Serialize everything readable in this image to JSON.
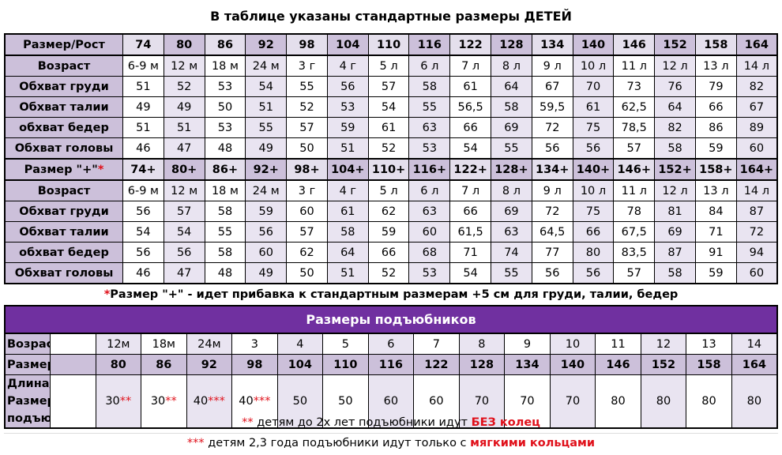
{
  "title": "В таблице указаны стандартные размеры ДЕТЕЙ",
  "standard": {
    "header": {
      "label": "Размер/Рост",
      "values": [
        "74",
        "80",
        "86",
        "92",
        "98",
        "104",
        "110",
        "116",
        "122",
        "128",
        "134",
        "140",
        "146",
        "152",
        "158",
        "164"
      ]
    },
    "rows": [
      {
        "label": "Возраст",
        "values": [
          "6-9 м",
          "12 м",
          "18 м",
          "24 м",
          "3 г",
          "4 г",
          "5 л",
          "6 л",
          "7 л",
          "8 л",
          "9 л",
          "10 л",
          "11 л",
          "12 л",
          "13 л",
          "14 л"
        ]
      },
      {
        "label": "Обхват груди",
        "values": [
          "51",
          "52",
          "53",
          "54",
          "55",
          "56",
          "57",
          "58",
          "61",
          "64",
          "67",
          "70",
          "73",
          "76",
          "79",
          "82"
        ]
      },
      {
        "label": "Обхват талии",
        "values": [
          "49",
          "49",
          "50",
          "51",
          "52",
          "53",
          "54",
          "55",
          "56,5",
          "58",
          "59,5",
          "61",
          "62,5",
          "64",
          "66",
          "67"
        ]
      },
      {
        "label": "обхват бедер",
        "values": [
          "51",
          "51",
          "53",
          "55",
          "57",
          "59",
          "61",
          "63",
          "66",
          "69",
          "72",
          "75",
          "78,5",
          "82",
          "86",
          "89"
        ]
      },
      {
        "label": "Обхват головы",
        "values": [
          "46",
          "47",
          "48",
          "49",
          "50",
          "51",
          "52",
          "53",
          "54",
          "55",
          "56",
          "56",
          "57",
          "58",
          "59",
          "60"
        ]
      }
    ]
  },
  "plus": {
    "header": {
      "label": "Размер \"+\"",
      "asterisk": "*",
      "values": [
        "74+",
        "80+",
        "86+",
        "92+",
        "98+",
        "104+",
        "110+",
        "116+",
        "122+",
        "128+",
        "134+",
        "140+",
        "146+",
        "152+",
        "158+",
        "164+"
      ]
    },
    "rows": [
      {
        "label": "Возраст",
        "values": [
          "6-9 м",
          "12 м",
          "18 м",
          "24 м",
          "3 г",
          "4 г",
          "5 л",
          "6 л",
          "7 л",
          "8 л",
          "9 л",
          "10 л",
          "11 л",
          "12 л",
          "13 л",
          "14 л"
        ]
      },
      {
        "label": "Обхват груди",
        "values": [
          "56",
          "57",
          "58",
          "59",
          "60",
          "61",
          "62",
          "63",
          "66",
          "69",
          "72",
          "75",
          "78",
          "81",
          "84",
          "87"
        ]
      },
      {
        "label": "Обхват талии",
        "values": [
          "54",
          "54",
          "55",
          "56",
          "57",
          "58",
          "59",
          "60",
          "61,5",
          "63",
          "64,5",
          "66",
          "67,5",
          "69",
          "71",
          "72"
        ]
      },
      {
        "label": "обхват бедер",
        "values": [
          "56",
          "56",
          "58",
          "60",
          "62",
          "64",
          "66",
          "68",
          "71",
          "74",
          "77",
          "80",
          "83,5",
          "87",
          "91",
          "94"
        ]
      },
      {
        "label": "Обхват головы",
        "values": [
          "46",
          "47",
          "48",
          "49",
          "50",
          "51",
          "52",
          "53",
          "54",
          "55",
          "56",
          "56",
          "57",
          "58",
          "59",
          "60"
        ]
      }
    ]
  },
  "plus_note": {
    "asterisk": "*",
    "text": "Размер \"+\" - идет прибавка к стандартным размерам +5 см для груди, талии, бедер"
  },
  "skirts": {
    "title": "Размеры подъюбников",
    "age": {
      "label": "Возраст",
      "values": [
        "",
        "12м",
        "18м",
        "24м",
        "3",
        "4",
        "5",
        "6",
        "7",
        "8",
        "9",
        "10",
        "11",
        "12",
        "13",
        "14"
      ]
    },
    "size": {
      "label": "Размер=Рост",
      "values": [
        "",
        "80",
        "86",
        "92",
        "98",
        "104",
        "110",
        "116",
        "122",
        "128",
        "134",
        "140",
        "146",
        "152",
        "158",
        "164"
      ]
    },
    "length": {
      "label": "Длина/Размер подъюбника(см)",
      "values": [
        {
          "v": "",
          "m": ""
        },
        {
          "v": "30",
          "m": "**"
        },
        {
          "v": "30",
          "m": "**"
        },
        {
          "v": "40",
          "m": "***"
        },
        {
          "v": "40",
          "m": "***"
        },
        {
          "v": "50",
          "m": ""
        },
        {
          "v": "50",
          "m": ""
        },
        {
          "v": "60",
          "m": ""
        },
        {
          "v": "60",
          "m": ""
        },
        {
          "v": "70",
          "m": ""
        },
        {
          "v": "70",
          "m": ""
        },
        {
          "v": "70",
          "m": ""
        },
        {
          "v": "80",
          "m": ""
        },
        {
          "v": "80",
          "m": ""
        },
        {
          "v": "80",
          "m": ""
        },
        {
          "v": "80",
          "m": ""
        }
      ]
    }
  },
  "notes": [
    {
      "mark": "**",
      "text": "детям до 2х лет подъюбники идут ",
      "emph": "БЕЗ колец"
    },
    {
      "mark": "***",
      "text": "детям 2,3 года подъюбники идут только с ",
      "emph": "мягкими кольцами"
    }
  ],
  "colors": {
    "header": "#ccc0da",
    "alt": "#e9e4f1",
    "band": "#7030a0",
    "red": "#e0101a"
  }
}
